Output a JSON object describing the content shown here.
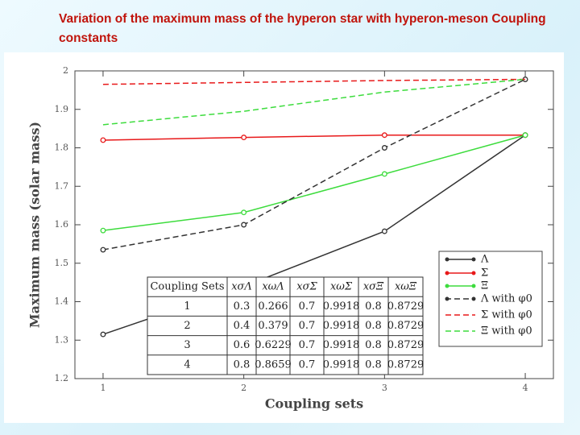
{
  "chart_data": {
    "type": "line",
    "title": "Variation of the maximum mass of the hyperon star with hyperon-meson Coupling constants",
    "x_label": "Coupling sets",
    "y_label": "Maximum mass (solar mass)",
    "x": [
      1,
      2,
      3,
      4
    ],
    "xlim": [
      0.8,
      4.2
    ],
    "xticks": [
      1,
      2,
      3,
      4
    ],
    "ylim": [
      1.2,
      2
    ],
    "yticks": [
      1.2,
      1.3,
      1.4,
      1.5,
      1.6,
      1.7,
      1.8,
      1.9,
      2
    ],
    "legend": "right",
    "series": [
      {
        "name": "Λ",
        "color": "#333333",
        "dashed": false,
        "marker": true,
        "values": [
          1.315,
          1.44,
          1.583,
          1.833
        ]
      },
      {
        "name": "Σ",
        "color": "#e8191a",
        "dashed": false,
        "marker": true,
        "values": [
          1.82,
          1.827,
          1.833,
          1.833
        ]
      },
      {
        "name": "Ξ",
        "color": "#3ddc3d",
        "dashed": false,
        "marker": true,
        "values": [
          1.585,
          1.632,
          1.732,
          1.833
        ]
      },
      {
        "name": "Λ with φ0",
        "color": "#333333",
        "dashed": true,
        "marker": true,
        "values": [
          1.535,
          1.6,
          1.8,
          1.978
        ]
      },
      {
        "name": "Σ with φ0",
        "color": "#e8191a",
        "dashed": true,
        "marker": false,
        "values": [
          1.965,
          1.97,
          1.975,
          1.978
        ]
      },
      {
        "name": "Ξ with φ0",
        "color": "#3ddc3d",
        "dashed": true,
        "marker": false,
        "values": [
          1.86,
          1.895,
          1.945,
          1.978
        ]
      }
    ]
  },
  "table": {
    "header": [
      "Coupling Sets",
      "xσΛ",
      "xωΛ",
      "xσΣ",
      "xωΣ",
      "xσΞ",
      "xωΞ"
    ],
    "rows": [
      [
        "1",
        "0.3",
        "0.266",
        "0.7",
        "0.9918",
        "0.8",
        "0.8729"
      ],
      [
        "2",
        "0.4",
        "0.379",
        "0.7",
        "0.9918",
        "0.8",
        "0.8729"
      ],
      [
        "3",
        "0.6",
        "0.6229",
        "0.7",
        "0.9918",
        "0.8",
        "0.8729"
      ],
      [
        "4",
        "0.8",
        "0.8659",
        "0.7",
        "0.9918",
        "0.8",
        "0.8729"
      ]
    ]
  }
}
